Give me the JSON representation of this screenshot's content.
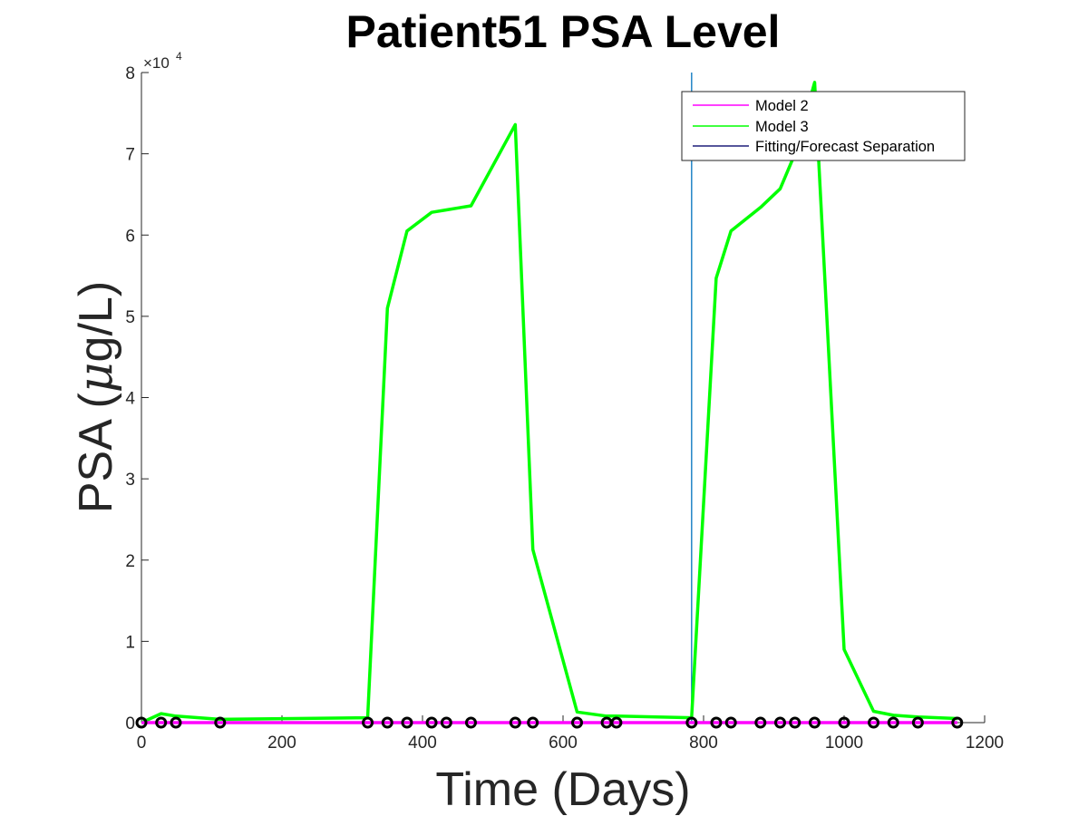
{
  "chart_data": {
    "type": "line",
    "title": "Patient51 PSA Level",
    "xlabel": "Time (Days)",
    "ylabel_main": "PSA (",
    "ylabel_mu": "μ",
    "ylabel_unit": "g/L)",
    "xlim": [
      0,
      1200
    ],
    "ylim": [
      0,
      80000
    ],
    "x_ticks": [
      0,
      200,
      400,
      600,
      800,
      1000,
      1200
    ],
    "x_tick_labels": [
      "0",
      "200",
      "400",
      "600",
      "800",
      "1000",
      "1200"
    ],
    "y_ticks": [
      0,
      10000,
      20000,
      30000,
      40000,
      50000,
      60000,
      70000,
      80000
    ],
    "y_tick_labels": [
      "0",
      "1",
      "2",
      "3",
      "4",
      "5",
      "6",
      "7",
      "8"
    ],
    "y_exponent_base": "×10",
    "y_exponent_power": "4",
    "grid": false,
    "legend_position": "top-right",
    "separation_x": 783,
    "series": [
      {
        "name": "Model 2",
        "color": "#ff00ff",
        "x": [
          0,
          28,
          49,
          112,
          322,
          350,
          378,
          413,
          434,
          469,
          532,
          557,
          620,
          662,
          676,
          783,
          818,
          839,
          881,
          909,
          930,
          958,
          1000,
          1042,
          1070,
          1105,
          1161
        ],
        "y": [
          0,
          0,
          0,
          0,
          0,
          0,
          0,
          0,
          0,
          0,
          0,
          0,
          0,
          0,
          0,
          0,
          0,
          0,
          0,
          0,
          0,
          0,
          0,
          0,
          0,
          0,
          0
        ]
      },
      {
        "name": "Model 3",
        "color": "#00ff00",
        "x": [
          0,
          28,
          49,
          112,
          322,
          350,
          378,
          413,
          434,
          469,
          532,
          557,
          620,
          662,
          676,
          783,
          818,
          839,
          881,
          909,
          930,
          958,
          1000,
          1042,
          1070,
          1105,
          1161
        ],
        "y": [
          0,
          1100,
          800,
          400,
          600,
          51000,
          60500,
          62800,
          63100,
          63600,
          73600,
          21300,
          1300,
          800,
          800,
          600,
          54700,
          60500,
          63400,
          65700,
          70000,
          78800,
          9000,
          1400,
          900,
          700,
          500
        ]
      },
      {
        "name": "Fitting/Forecast Separation",
        "color": "#1f1f7a"
      }
    ],
    "observed": {
      "marker": "circle",
      "color": "#000000",
      "x": [
        0,
        28,
        49,
        112,
        322,
        350,
        378,
        413,
        434,
        469,
        532,
        557,
        620,
        662,
        676,
        783,
        818,
        839,
        881,
        909,
        930,
        958,
        1000,
        1042,
        1070,
        1105,
        1161
      ],
      "y": [
        0,
        0,
        0,
        0,
        0,
        0,
        0,
        0,
        0,
        0,
        0,
        0,
        0,
        0,
        0,
        0,
        0,
        0,
        0,
        0,
        0,
        0,
        0,
        0,
        0,
        0,
        0
      ]
    }
  }
}
